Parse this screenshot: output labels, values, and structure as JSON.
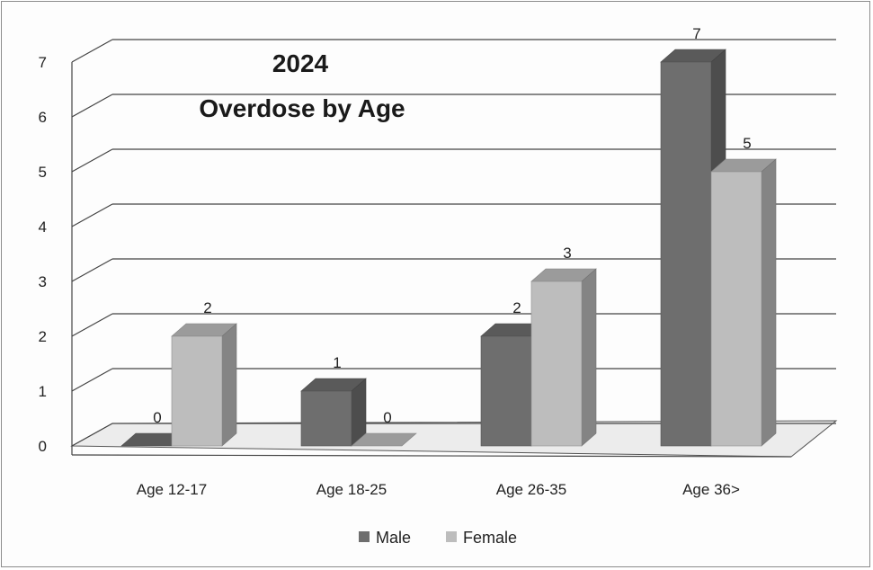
{
  "chart_data": {
    "type": "bar",
    "title": "2024",
    "subtitle": "Overdose by Age",
    "categories": [
      "Age 12-17",
      "Age 18-25",
      "Age 26-35",
      "Age 36>"
    ],
    "series": [
      {
        "name": "Male",
        "values": [
          0,
          1,
          2,
          7
        ],
        "color": "#6e6e6e"
      },
      {
        "name": "Female",
        "values": [
          2,
          0,
          3,
          5
        ],
        "color": "#bdbdbd"
      }
    ],
    "ylim": [
      0,
      7
    ],
    "yticks": [
      "0",
      "1",
      "2",
      "3",
      "4",
      "5",
      "6",
      "7"
    ],
    "grid": true,
    "three_d": true,
    "legend_position": "bottom"
  }
}
